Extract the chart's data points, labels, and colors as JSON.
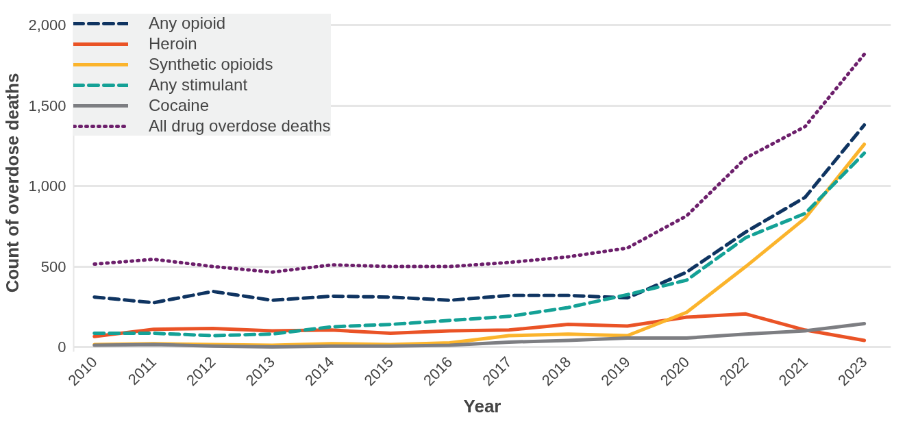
{
  "chart_data": {
    "type": "line",
    "xlabel": "Year",
    "ylabel": "Count of overdose deaths",
    "categories": [
      "2010",
      "2011",
      "2012",
      "2013",
      "2014",
      "2015",
      "2016",
      "2017",
      "2018",
      "2019",
      "2020",
      "2022",
      "2021",
      "2023"
    ],
    "ylim": [
      -30,
      2070
    ],
    "yticks": [
      {
        "value": 0,
        "label": "0"
      },
      {
        "value": 500,
        "label": "500"
      },
      {
        "value": 1000,
        "label": "1,000"
      },
      {
        "value": 1500,
        "label": "1,500"
      },
      {
        "value": 2000,
        "label": "2,000"
      }
    ],
    "grid": "y",
    "legend": "top left",
    "marker": "none",
    "series": [
      {
        "name": "Any opioid",
        "color": "#0f3461",
        "line_style": "dashed",
        "values": [
          310,
          275,
          345,
          290,
          315,
          310,
          290,
          320,
          320,
          305,
          465,
          715,
          930,
          1380
        ]
      },
      {
        "name": "Heroin",
        "color": "#ea5326",
        "line_style": "solid",
        "values": [
          65,
          110,
          115,
          100,
          105,
          85,
          100,
          105,
          140,
          130,
          185,
          205,
          105,
          40
        ]
      },
      {
        "name": "Synthetic opioids",
        "color": "#fbb42c",
        "line_style": "solid",
        "values": [
          15,
          20,
          15,
          10,
          20,
          15,
          25,
          70,
          80,
          70,
          215,
          500,
          800,
          1260
        ]
      },
      {
        "name": "Any stimulant",
        "color": "#14a196",
        "line_style": "dashed",
        "values": [
          85,
          85,
          70,
          80,
          125,
          140,
          165,
          190,
          245,
          325,
          415,
          680,
          830,
          1205
        ]
      },
      {
        "name": "Cocaine",
        "color": "#7d7e82",
        "line_style": "solid",
        "values": [
          10,
          15,
          5,
          0,
          5,
          5,
          10,
          30,
          40,
          55,
          55,
          80,
          100,
          145
        ]
      },
      {
        "name": "All drug overdose deaths",
        "color": "#6c1f6b",
        "line_style": "dotted",
        "values": [
          515,
          545,
          500,
          465,
          510,
          500,
          500,
          525,
          560,
          615,
          815,
          1175,
          1370,
          1820
        ]
      }
    ]
  }
}
